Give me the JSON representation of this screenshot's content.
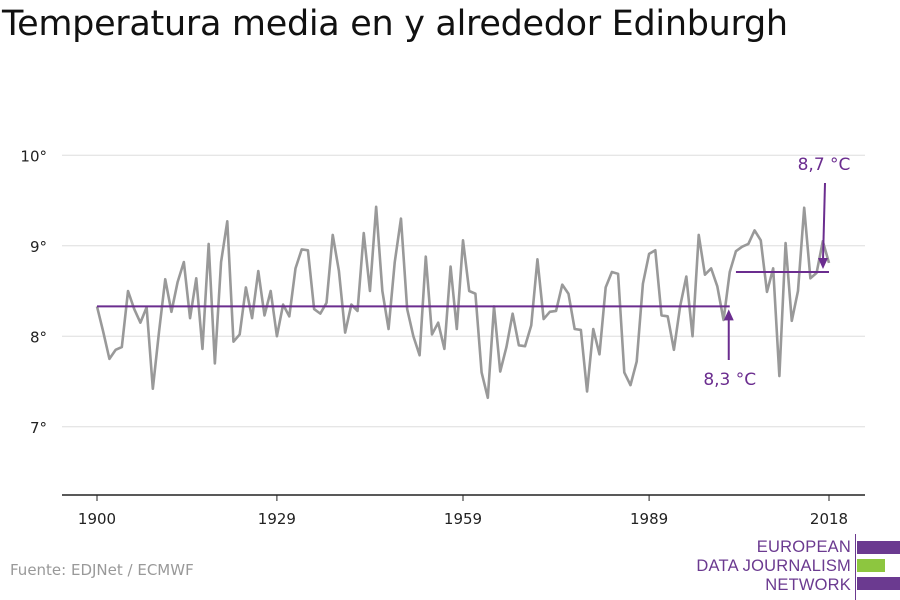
{
  "header": {
    "title": "Temperatura media en y alrededor Edinburgh"
  },
  "footer": {
    "source": "Fuente: EDJNet / ECMWF"
  },
  "logo": {
    "lines": [
      "EUROPEAN",
      "DATA JOURNALISM",
      "NETWORK"
    ],
    "colors": {
      "primary": "#6b3a90",
      "accent": "#8dc63f"
    }
  },
  "colors": {
    "series": "#999999",
    "annotation": "#6b2d8f",
    "grid": "#dddddd",
    "axis": "#222222",
    "text": "#222222"
  },
  "chart_data": {
    "type": "line",
    "title": "Temperatura media en y alrededor Edinburgh",
    "xlim": [
      1900,
      2018
    ],
    "ylim": [
      6.5,
      10.5
    ],
    "x_ticks": [
      1900,
      1929,
      1959,
      1989,
      2018
    ],
    "x_tick_labels": [
      "1900",
      "1929",
      "1959",
      "1989",
      "2018"
    ],
    "y_ticks": [
      7,
      8,
      9,
      10
    ],
    "y_tick_labels": [
      "7°",
      "8°",
      "9°",
      "10°"
    ],
    "grid": "horizontal",
    "series": [
      {
        "x_start": 1900,
        "values": [
          8.33,
          8.05,
          7.75,
          7.85,
          7.88,
          8.5,
          8.3,
          8.15,
          8.32,
          7.42,
          8.05,
          8.63,
          8.27,
          8.6,
          8.82,
          8.2,
          8.64,
          7.86,
          9.02,
          7.7,
          8.82,
          9.27,
          7.94,
          8.02,
          8.54,
          8.2,
          8.72,
          8.23,
          8.5,
          8.0,
          8.35,
          8.22,
          8.75,
          8.96,
          8.95,
          8.3,
          8.25,
          8.37,
          9.12,
          8.72,
          8.04,
          8.35,
          8.28,
          9.14,
          8.5,
          9.43,
          8.5,
          8.08,
          8.82,
          9.3,
          8.3,
          8.0,
          7.79,
          8.88,
          8.02,
          8.15,
          7.86,
          8.77,
          8.08,
          9.06,
          8.5,
          8.47,
          7.6,
          7.32,
          8.33,
          7.61,
          7.88,
          8.25,
          7.9,
          7.89,
          8.12,
          8.85,
          8.19,
          8.27,
          8.28,
          8.57,
          8.47,
          8.08,
          8.07,
          7.39,
          8.08,
          7.8,
          8.54,
          8.71,
          8.69,
          7.6,
          7.46,
          7.72,
          8.58,
          8.91,
          8.95,
          8.23,
          8.22,
          7.85,
          8.33,
          8.66,
          8.0,
          9.12,
          8.68,
          8.75,
          8.55,
          8.18,
          8.71,
          8.94,
          8.99,
          9.02,
          9.17,
          9.06,
          8.49,
          8.75,
          7.56,
          9.03,
          8.17,
          8.5,
          9.42,
          8.64,
          8.7,
          9.05,
          8.81
        ]
      }
    ],
    "reference_lines": [
      {
        "label": "8,3 °C",
        "value": 8.33,
        "x_from": 1900,
        "x_to": 2002
      },
      {
        "label": "8,7 °C",
        "value": 8.71,
        "x_from": 2003,
        "x_to": 2018
      }
    ]
  }
}
